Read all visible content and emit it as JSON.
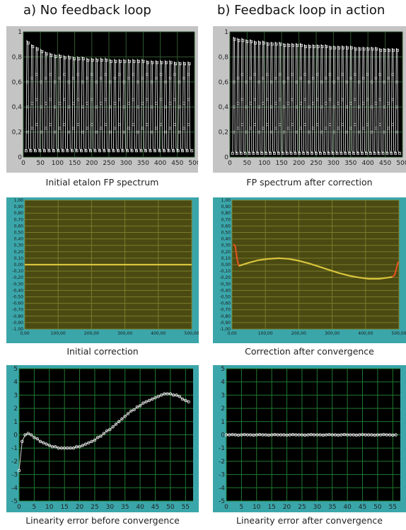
{
  "titles": {
    "left": "a) No feedback loop",
    "right": "b) Feedback loop in action"
  },
  "colors": {
    "gray_frame": "#c4c4c4",
    "teal_frame": "#3aa6aa",
    "plot_bg": "#000000",
    "gray_grid": "#2f5a2f",
    "yellow_bg": "#4a4a12",
    "yellow_grid": "#7c7c2c",
    "yellow_line": "#d8c43c",
    "red_line": "#e05020",
    "green_grid": "#1f7a2f",
    "marker": "#e8e8e8"
  },
  "chart_data": [
    {
      "type": "line",
      "panel": "a-top",
      "caption": "Initial etalon FP spectrum",
      "xlim": [
        0,
        500
      ],
      "ylim": [
        0,
        1
      ],
      "xticks": [
        "0",
        "50",
        "100",
        "150",
        "200",
        "250",
        "300",
        "350",
        "400",
        "450",
        "500"
      ],
      "yticks": [
        "0",
        "0,2",
        "0,4",
        "0,6",
        "0,8",
        "1"
      ],
      "fringes": 36,
      "peaks": [
        0.93,
        0.9,
        0.88,
        0.86,
        0.84,
        0.83,
        0.82,
        0.82,
        0.81,
        0.81,
        0.8,
        0.8,
        0.8,
        0.79,
        0.79,
        0.79,
        0.79,
        0.79,
        0.78,
        0.78,
        0.78,
        0.78,
        0.78,
        0.78,
        0.78,
        0.78,
        0.77,
        0.77,
        0.77,
        0.77,
        0.77,
        0.77,
        0.76,
        0.76,
        0.76,
        0.76
      ],
      "minimum": 0.05
    },
    {
      "type": "line",
      "panel": "b-top",
      "caption": "FP spectrum after correction",
      "xlim": [
        0,
        500
      ],
      "ylim": [
        0,
        1
      ],
      "xticks": [
        "0",
        "50",
        "100",
        "150",
        "200",
        "250",
        "300",
        "350",
        "400",
        "450",
        "500"
      ],
      "yticks": [
        "0",
        "0,2",
        "0,4",
        "0,6",
        "0,8",
        "1"
      ],
      "fringes": 40,
      "peaks": [
        0.96,
        0.95,
        0.95,
        0.94,
        0.94,
        0.93,
        0.93,
        0.93,
        0.92,
        0.92,
        0.92,
        0.92,
        0.91,
        0.91,
        0.91,
        0.91,
        0.91,
        0.9,
        0.9,
        0.9,
        0.9,
        0.9,
        0.9,
        0.89,
        0.89,
        0.89,
        0.89,
        0.89,
        0.89,
        0.88,
        0.88,
        0.88,
        0.88,
        0.88,
        0.88,
        0.87,
        0.87,
        0.87,
        0.87,
        0.87
      ],
      "minimum": 0.03
    },
    {
      "type": "line",
      "panel": "a-mid",
      "caption": "Initial correction",
      "xlim": [
        0,
        500
      ],
      "ylim": [
        -1,
        1
      ],
      "xticks": [
        "0,00",
        "100,00",
        "200,00",
        "300,00",
        "400,00",
        "500,00"
      ],
      "yticks": [
        "-1,00",
        "-0,90",
        "-0,80",
        "-0,70",
        "-0,60",
        "-0,50",
        "-0,40",
        "-0,30",
        "-0,20",
        "-0,10",
        "0,00",
        "0,10",
        "0,20",
        "0,30",
        "0,40",
        "0,50",
        "0,60",
        "0,70",
        "0,80",
        "0,90",
        "1,00"
      ],
      "series": [
        {
          "x": [
            0,
            100,
            200,
            300,
            400,
            500
          ],
          "y": [
            0,
            0,
            0,
            0,
            0,
            0
          ]
        }
      ]
    },
    {
      "type": "line",
      "panel": "b-mid",
      "caption": "Correction after convergence",
      "xlim": [
        0,
        500
      ],
      "ylim": [
        -1,
        1
      ],
      "xticks": [
        "0,00",
        "100,00",
        "200,00",
        "300,00",
        "400,00",
        "500,00"
      ],
      "yticks": [
        "-1,00",
        "-0,90",
        "-0,80",
        "-0,70",
        "-0,60",
        "-0,50",
        "-0,40",
        "-0,30",
        "-0,20",
        "-0,10",
        "0,00",
        "0,10",
        "0,20",
        "0,30",
        "0,40",
        "0,50",
        "0,60",
        "0,70",
        "0,80",
        "0,90",
        "1,00"
      ],
      "series": [
        {
          "x": [
            20,
            50,
            80,
            110,
            140,
            170,
            200,
            230,
            260,
            290,
            320,
            350,
            380,
            410,
            440,
            470,
            480
          ],
          "y": [
            -0.02,
            0.03,
            0.07,
            0.09,
            0.1,
            0.09,
            0.06,
            0.02,
            -0.03,
            -0.08,
            -0.13,
            -0.17,
            -0.2,
            -0.22,
            -0.22,
            -0.2,
            -0.19
          ]
        },
        {
          "x": [
            5,
            10,
            15,
            20
          ],
          "y": [
            0.32,
            0.28,
            0.1,
            -0.02
          ]
        },
        {
          "x": [
            480,
            487,
            493,
            498
          ],
          "y": [
            -0.19,
            -0.16,
            -0.05,
            0.05
          ]
        }
      ]
    },
    {
      "type": "scatter",
      "panel": "a-bot",
      "caption": "Linearity error before convergence",
      "xlim": [
        0,
        57.5
      ],
      "ylim": [
        -5,
        5
      ],
      "xticks": [
        "0",
        "5",
        "10",
        "15",
        "20",
        "25",
        "30",
        "35",
        "40",
        "45",
        "50",
        "55"
      ],
      "yticks": [
        "-5",
        "-4",
        "-3",
        "-2",
        "-1",
        "0",
        "1",
        "2",
        "3",
        "4",
        "5"
      ],
      "series": [
        {
          "x": [
            0,
            1,
            2,
            3,
            4,
            5,
            6,
            7,
            8,
            9,
            10,
            11,
            12,
            13,
            14,
            15,
            16,
            17,
            18,
            19,
            20,
            21,
            22,
            23,
            24,
            25,
            26,
            27,
            28,
            29,
            30,
            31,
            32,
            33,
            34,
            35,
            36,
            37,
            38,
            39,
            40,
            41,
            42,
            43,
            44,
            45,
            46,
            47,
            48,
            49,
            50,
            51,
            52,
            53,
            54,
            55,
            56
          ],
          "y": [
            -2.7,
            -0.5,
            0.0,
            0.1,
            0.0,
            -0.2,
            -0.3,
            -0.5,
            -0.6,
            -0.7,
            -0.8,
            -0.9,
            -0.9,
            -1.0,
            -1.0,
            -1.0,
            -1.0,
            -1.0,
            -1.0,
            -0.9,
            -0.9,
            -0.8,
            -0.7,
            -0.6,
            -0.5,
            -0.4,
            -0.2,
            -0.1,
            0.1,
            0.3,
            0.4,
            0.6,
            0.8,
            1.0,
            1.2,
            1.4,
            1.6,
            1.8,
            1.9,
            2.1,
            2.2,
            2.4,
            2.5,
            2.6,
            2.7,
            2.8,
            2.9,
            3.0,
            3.1,
            3.1,
            3.1,
            3.0,
            3.0,
            2.9,
            2.7,
            2.6,
            2.5
          ]
        }
      ]
    },
    {
      "type": "scatter",
      "panel": "b-bot",
      "caption": "Linearity error after convergence",
      "xlim": [
        0,
        57.5
      ],
      "ylim": [
        -5,
        5
      ],
      "xticks": [
        "0",
        "5",
        "10",
        "15",
        "20",
        "25",
        "30",
        "35",
        "40",
        "45",
        "50",
        "55"
      ],
      "yticks": [
        "-5",
        "-4",
        "-3",
        "-2",
        "-1",
        "0",
        "1",
        "2",
        "3",
        "4",
        "5"
      ],
      "series": [
        {
          "x": [
            0,
            1,
            2,
            3,
            4,
            5,
            6,
            7,
            8,
            9,
            10,
            11,
            12,
            13,
            14,
            15,
            16,
            17,
            18,
            19,
            20,
            21,
            22,
            23,
            24,
            25,
            26,
            27,
            28,
            29,
            30,
            31,
            32,
            33,
            34,
            35,
            36,
            37,
            38,
            39,
            40,
            41,
            42,
            43,
            44,
            45,
            46,
            47,
            48,
            49,
            50,
            51,
            52,
            53,
            54,
            55,
            56
          ],
          "y": [
            0.0,
            0.0,
            0.02,
            0.0,
            -0.02,
            0.0,
            0.02,
            0.0,
            0.0,
            -0.02,
            0.0,
            0.02,
            0.0,
            0.0,
            -0.02,
            0.0,
            0.02,
            0.0,
            0.0,
            0.0,
            -0.02,
            0.0,
            0.02,
            0.0,
            0.0,
            0.0,
            -0.02,
            0.0,
            0.02,
            0.0,
            0.0,
            0.0,
            -0.02,
            0.0,
            0.02,
            0.0,
            0.0,
            -0.02,
            0.0,
            0.02,
            0.0,
            0.0,
            0.0,
            -0.02,
            0.0,
            0.02,
            0.0,
            0.0,
            0.0,
            -0.02,
            0.0,
            0.0,
            0.02,
            0.0,
            0.0,
            -0.02,
            0.0
          ]
        }
      ]
    }
  ]
}
